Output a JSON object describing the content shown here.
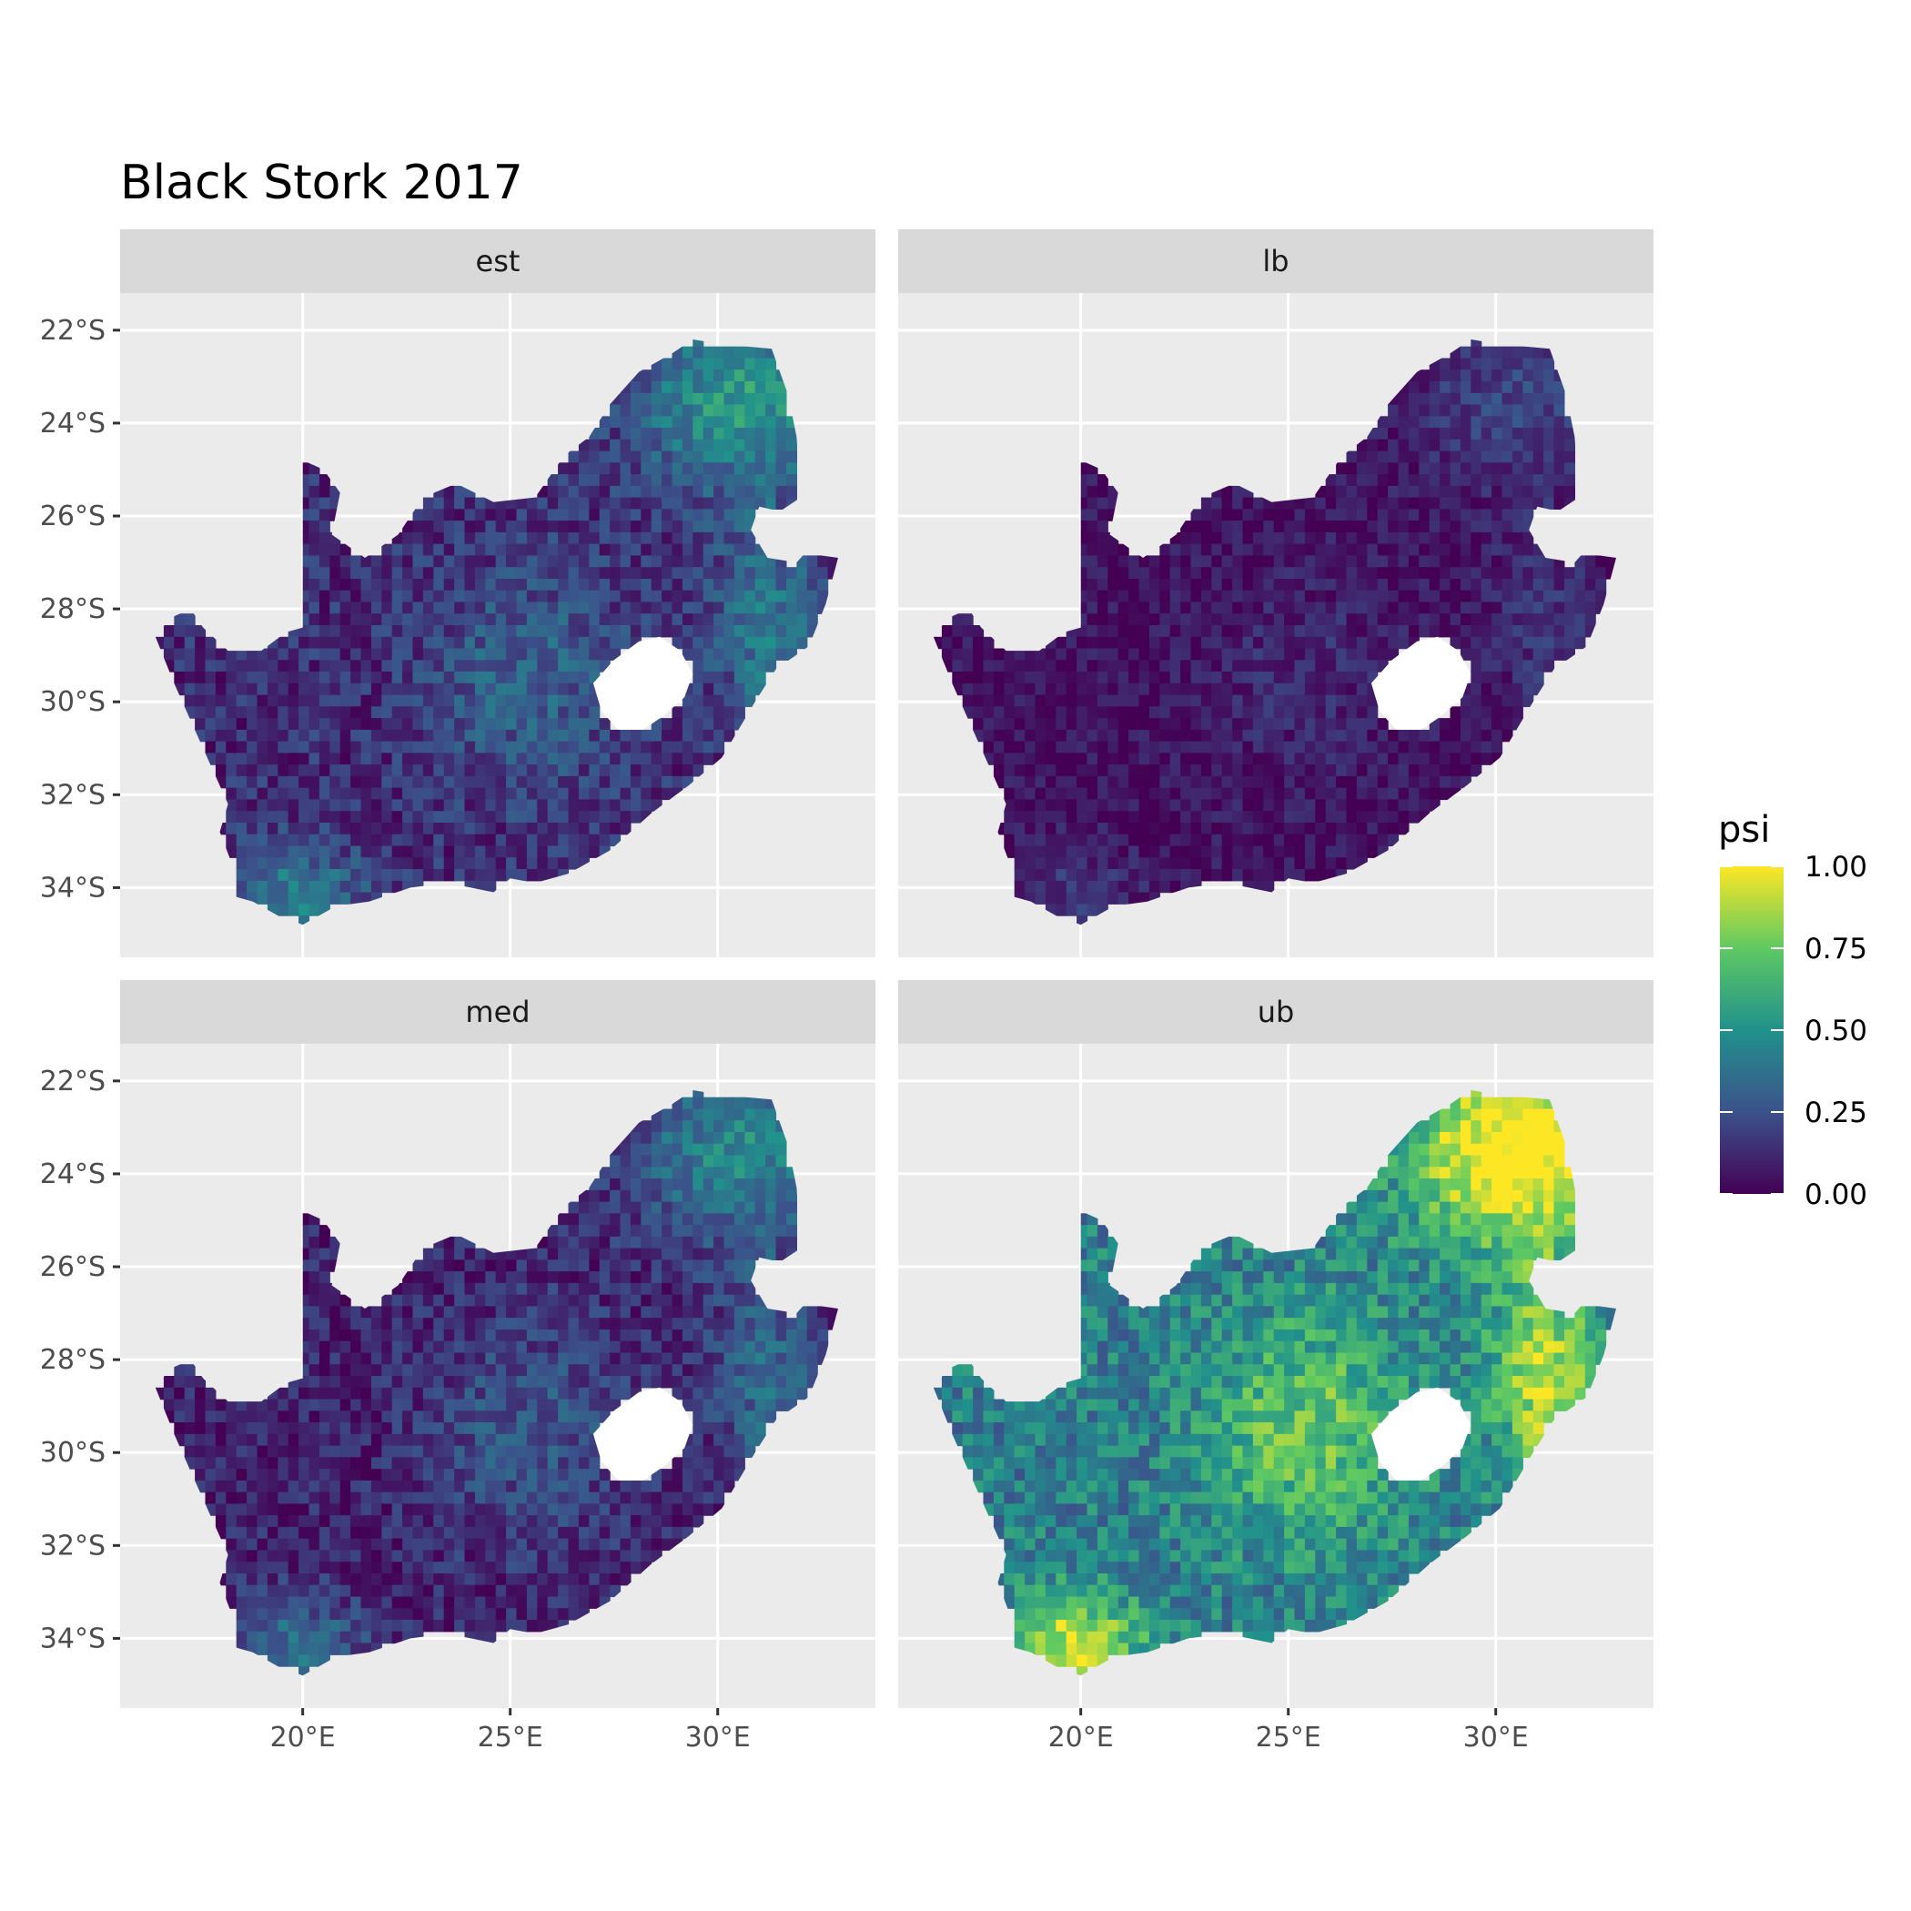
{
  "title": "Black Stork 2017",
  "panels": [
    {
      "label": "est"
    },
    {
      "label": "lb"
    },
    {
      "label": "med"
    },
    {
      "label": "ub"
    }
  ],
  "axes": {
    "y_ticks": [
      "22°S",
      "24°S",
      "26°S",
      "28°S",
      "30°S",
      "32°S",
      "34°S"
    ],
    "x_ticks": [
      "20°E",
      "25°E",
      "30°E"
    ]
  },
  "legend": {
    "title": "psi",
    "labels": [
      "1.00",
      "0.75",
      "0.50",
      "0.25",
      "0.00"
    ],
    "colors": [
      "#fde725",
      "#5ec962",
      "#21918c",
      "#3b528b",
      "#440154"
    ]
  },
  "colors": {
    "panel_bg": "#ebebeb",
    "strip_bg": "#d9d9d9",
    "grid": "#ffffff",
    "country_low": "#440154",
    "country_mid": "#31688e",
    "country_high": "#fde725"
  },
  "chart_data": {
    "type": "heatmap",
    "title": "Black Stork 2017",
    "facets": [
      "est",
      "lb",
      "med",
      "ub"
    ],
    "xlabel": "",
    "ylabel": "",
    "x_ticks": [
      20,
      25,
      30
    ],
    "y_ticks": [
      -22,
      -24,
      -26,
      -28,
      -30,
      -32,
      -34
    ],
    "xlim": [
      15.6,
      33.8
    ],
    "ylim": [
      -35.5,
      -21.2
    ],
    "fill": "psi",
    "fill_range": [
      0,
      1
    ],
    "grid": true,
    "legend_position": "right"
  }
}
